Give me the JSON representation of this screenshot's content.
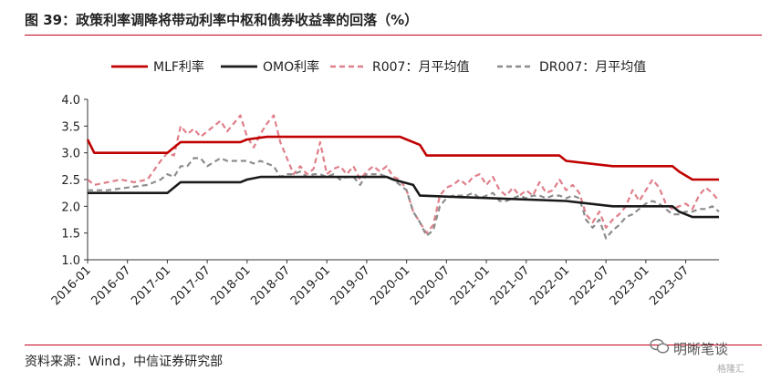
{
  "header": {
    "title": "图 39：政策利率调降将带动利率中枢和债券收益率的回落（%）"
  },
  "footer": {
    "source": "资料来源：Wind，中信证券研究部"
  },
  "watermark": {
    "logo": "WeChat logo",
    "text": "明晰笔谈",
    "sub": "格隆汇"
  },
  "colors": {
    "accent": "#c40018",
    "mlf": "#c00000",
    "omo": "#1a1a1a",
    "r007": "#e07f8a",
    "dr007": "#8c8c8c"
  },
  "chart_data": {
    "type": "line",
    "title": "",
    "xlabel": "",
    "ylabel": "",
    "ylim": [
      1.0,
      4.0
    ],
    "yticks": [
      "1.0",
      "1.5",
      "2.0",
      "2.5",
      "3.0",
      "3.5",
      "4.0"
    ],
    "xlim": [
      "2016-01",
      "2023-12"
    ],
    "xticks": [
      "2016-01",
      "2016-07",
      "2017-01",
      "2017-07",
      "2018-01",
      "2018-07",
      "2019-01",
      "2019-07",
      "2020-01",
      "2020-07",
      "2021-01",
      "2021-07",
      "2022-01",
      "2022-07",
      "2023-01",
      "2023-07"
    ],
    "grid": false,
    "legend": "top",
    "series": [
      {
        "name": "MLF利率",
        "style": "solid",
        "color": "#c00000",
        "points": [
          [
            "2016-01",
            3.25
          ],
          [
            "2016-02",
            3.0
          ],
          [
            "2017-01",
            3.0
          ],
          [
            "2017-02",
            3.1
          ],
          [
            "2017-03",
            3.2
          ],
          [
            "2017-12",
            3.2
          ],
          [
            "2018-01",
            3.25
          ],
          [
            "2018-04",
            3.3
          ],
          [
            "2019-12",
            3.3
          ],
          [
            "2020-01",
            3.25
          ],
          [
            "2020-03",
            3.15
          ],
          [
            "2020-04",
            2.95
          ],
          [
            "2021-12",
            2.95
          ],
          [
            "2022-01",
            2.85
          ],
          [
            "2022-08",
            2.75
          ],
          [
            "2023-05",
            2.75
          ],
          [
            "2023-06",
            2.65
          ],
          [
            "2023-08",
            2.5
          ],
          [
            "2023-12",
            2.5
          ]
        ]
      },
      {
        "name": "OMO利率",
        "style": "solid",
        "color": "#1a1a1a",
        "points": [
          [
            "2016-01",
            2.25
          ],
          [
            "2017-01",
            2.25
          ],
          [
            "2017-02",
            2.35
          ],
          [
            "2017-03",
            2.45
          ],
          [
            "2017-12",
            2.45
          ],
          [
            "2018-01",
            2.5
          ],
          [
            "2018-03",
            2.55
          ],
          [
            "2019-10",
            2.55
          ],
          [
            "2019-11",
            2.5
          ],
          [
            "2020-02",
            2.4
          ],
          [
            "2020-03",
            2.2
          ],
          [
            "2022-01",
            2.1
          ],
          [
            "2022-08",
            2.0
          ],
          [
            "2023-05",
            2.0
          ],
          [
            "2023-06",
            1.9
          ],
          [
            "2023-08",
            1.8
          ],
          [
            "2023-12",
            1.8
          ]
        ]
      },
      {
        "name": "R007：月平均值",
        "style": "dashed",
        "color": "#e07f8a",
        "points": [
          [
            "2016-01",
            2.5
          ],
          [
            "2016-02",
            2.4
          ],
          [
            "2016-04",
            2.45
          ],
          [
            "2016-06",
            2.5
          ],
          [
            "2016-08",
            2.45
          ],
          [
            "2016-10",
            2.5
          ],
          [
            "2016-12",
            2.85
          ],
          [
            "2017-01",
            3.0
          ],
          [
            "2017-02",
            2.95
          ],
          [
            "2017-03",
            3.5
          ],
          [
            "2017-04",
            3.35
          ],
          [
            "2017-05",
            3.45
          ],
          [
            "2017-06",
            3.3
          ],
          [
            "2017-07",
            3.4
          ],
          [
            "2017-09",
            3.6
          ],
          [
            "2017-10",
            3.4
          ],
          [
            "2017-12",
            3.7
          ],
          [
            "2018-01",
            3.3
          ],
          [
            "2018-02",
            3.1
          ],
          [
            "2018-03",
            3.35
          ],
          [
            "2018-04",
            3.55
          ],
          [
            "2018-05",
            3.7
          ],
          [
            "2018-06",
            3.2
          ],
          [
            "2018-07",
            2.9
          ],
          [
            "2018-08",
            2.6
          ],
          [
            "2018-09",
            2.75
          ],
          [
            "2018-10",
            2.6
          ],
          [
            "2018-11",
            2.7
          ],
          [
            "2018-12",
            3.2
          ],
          [
            "2019-01",
            2.6
          ],
          [
            "2019-02",
            2.7
          ],
          [
            "2019-03",
            2.75
          ],
          [
            "2019-04",
            2.6
          ],
          [
            "2019-05",
            2.75
          ],
          [
            "2019-06",
            2.5
          ],
          [
            "2019-07",
            2.65
          ],
          [
            "2019-08",
            2.75
          ],
          [
            "2019-09",
            2.65
          ],
          [
            "2019-10",
            2.75
          ],
          [
            "2019-11",
            2.55
          ],
          [
            "2019-12",
            2.5
          ],
          [
            "2020-01",
            2.3
          ],
          [
            "2020-02",
            1.9
          ],
          [
            "2020-03",
            1.7
          ],
          [
            "2020-04",
            1.5
          ],
          [
            "2020-05",
            1.65
          ],
          [
            "2020-06",
            2.2
          ],
          [
            "2020-07",
            2.35
          ],
          [
            "2020-08",
            2.4
          ],
          [
            "2020-09",
            2.5
          ],
          [
            "2020-10",
            2.4
          ],
          [
            "2020-11",
            2.55
          ],
          [
            "2020-12",
            2.6
          ],
          [
            "2021-01",
            2.4
          ],
          [
            "2021-02",
            2.55
          ],
          [
            "2021-03",
            2.3
          ],
          [
            "2021-04",
            2.2
          ],
          [
            "2021-05",
            2.35
          ],
          [
            "2021-06",
            2.2
          ],
          [
            "2021-07",
            2.3
          ],
          [
            "2021-08",
            2.2
          ],
          [
            "2021-09",
            2.45
          ],
          [
            "2021-10",
            2.25
          ],
          [
            "2021-11",
            2.3
          ],
          [
            "2021-12",
            2.5
          ],
          [
            "2022-01",
            2.3
          ],
          [
            "2022-02",
            2.4
          ],
          [
            "2022-03",
            2.25
          ],
          [
            "2022-04",
            1.85
          ],
          [
            "2022-05",
            1.7
          ],
          [
            "2022-06",
            1.9
          ],
          [
            "2022-07",
            1.6
          ],
          [
            "2022-08",
            1.75
          ],
          [
            "2022-09",
            1.85
          ],
          [
            "2022-10",
            2.0
          ],
          [
            "2022-11",
            2.3
          ],
          [
            "2022-12",
            2.1
          ],
          [
            "2023-01",
            2.3
          ],
          [
            "2023-02",
            2.5
          ],
          [
            "2023-03",
            2.35
          ],
          [
            "2023-04",
            2.05
          ],
          [
            "2023-05",
            1.95
          ],
          [
            "2023-06",
            2.0
          ],
          [
            "2023-07",
            2.05
          ],
          [
            "2023-08",
            1.95
          ],
          [
            "2023-09",
            2.2
          ],
          [
            "2023-10",
            2.35
          ],
          [
            "2023-11",
            2.25
          ],
          [
            "2023-12",
            2.1
          ]
        ]
      },
      {
        "name": "DR007：月平均值",
        "style": "dashed",
        "color": "#8c8c8c",
        "points": [
          [
            "2016-01",
            2.3
          ],
          [
            "2016-04",
            2.3
          ],
          [
            "2016-07",
            2.35
          ],
          [
            "2016-10",
            2.4
          ],
          [
            "2016-12",
            2.5
          ],
          [
            "2017-01",
            2.6
          ],
          [
            "2017-02",
            2.55
          ],
          [
            "2017-03",
            2.75
          ],
          [
            "2017-04",
            2.75
          ],
          [
            "2017-05",
            2.9
          ],
          [
            "2017-06",
            2.9
          ],
          [
            "2017-07",
            2.75
          ],
          [
            "2017-09",
            2.9
          ],
          [
            "2017-10",
            2.85
          ],
          [
            "2017-12",
            2.85
          ],
          [
            "2018-01",
            2.85
          ],
          [
            "2018-02",
            2.8
          ],
          [
            "2018-03",
            2.85
          ],
          [
            "2018-04",
            2.8
          ],
          [
            "2018-05",
            2.75
          ],
          [
            "2018-06",
            2.55
          ],
          [
            "2018-07",
            2.6
          ],
          [
            "2018-08",
            2.6
          ],
          [
            "2018-09",
            2.65
          ],
          [
            "2018-10",
            2.55
          ],
          [
            "2018-11",
            2.6
          ],
          [
            "2018-12",
            2.6
          ],
          [
            "2019-01",
            2.55
          ],
          [
            "2019-02",
            2.6
          ],
          [
            "2019-03",
            2.5
          ],
          [
            "2019-04",
            2.55
          ],
          [
            "2019-05",
            2.55
          ],
          [
            "2019-06",
            2.4
          ],
          [
            "2019-07",
            2.6
          ],
          [
            "2019-08",
            2.6
          ],
          [
            "2019-09",
            2.6
          ],
          [
            "2019-10",
            2.55
          ],
          [
            "2019-11",
            2.5
          ],
          [
            "2019-12",
            2.4
          ],
          [
            "2020-01",
            2.3
          ],
          [
            "2020-02",
            1.9
          ],
          [
            "2020-03",
            1.7
          ],
          [
            "2020-04",
            1.45
          ],
          [
            "2020-05",
            1.55
          ],
          [
            "2020-06",
            2.0
          ],
          [
            "2020-07",
            2.15
          ],
          [
            "2020-08",
            2.2
          ],
          [
            "2020-09",
            2.2
          ],
          [
            "2020-10",
            2.2
          ],
          [
            "2020-11",
            2.25
          ],
          [
            "2020-12",
            2.15
          ],
          [
            "2021-01",
            2.2
          ],
          [
            "2021-02",
            2.25
          ],
          [
            "2021-03",
            2.1
          ],
          [
            "2021-04",
            2.1
          ],
          [
            "2021-05",
            2.15
          ],
          [
            "2021-06",
            2.2
          ],
          [
            "2021-07",
            2.15
          ],
          [
            "2021-08",
            2.2
          ],
          [
            "2021-09",
            2.2
          ],
          [
            "2021-10",
            2.15
          ],
          [
            "2021-11",
            2.2
          ],
          [
            "2021-12",
            2.2
          ],
          [
            "2022-01",
            2.15
          ],
          [
            "2022-02",
            2.2
          ],
          [
            "2022-03",
            2.15
          ],
          [
            "2022-04",
            1.75
          ],
          [
            "2022-05",
            1.6
          ],
          [
            "2022-06",
            1.75
          ],
          [
            "2022-07",
            1.4
          ],
          [
            "2022-08",
            1.55
          ],
          [
            "2022-09",
            1.65
          ],
          [
            "2022-10",
            1.8
          ],
          [
            "2022-11",
            1.85
          ],
          [
            "2022-12",
            1.95
          ],
          [
            "2023-01",
            2.05
          ],
          [
            "2023-02",
            2.1
          ],
          [
            "2023-03",
            2.05
          ],
          [
            "2023-04",
            1.95
          ],
          [
            "2023-05",
            1.85
          ],
          [
            "2023-06",
            1.85
          ],
          [
            "2023-07",
            1.9
          ],
          [
            "2023-08",
            1.9
          ],
          [
            "2023-09",
            1.95
          ],
          [
            "2023-10",
            1.95
          ],
          [
            "2023-11",
            2.0
          ],
          [
            "2023-12",
            1.9
          ]
        ]
      }
    ]
  }
}
